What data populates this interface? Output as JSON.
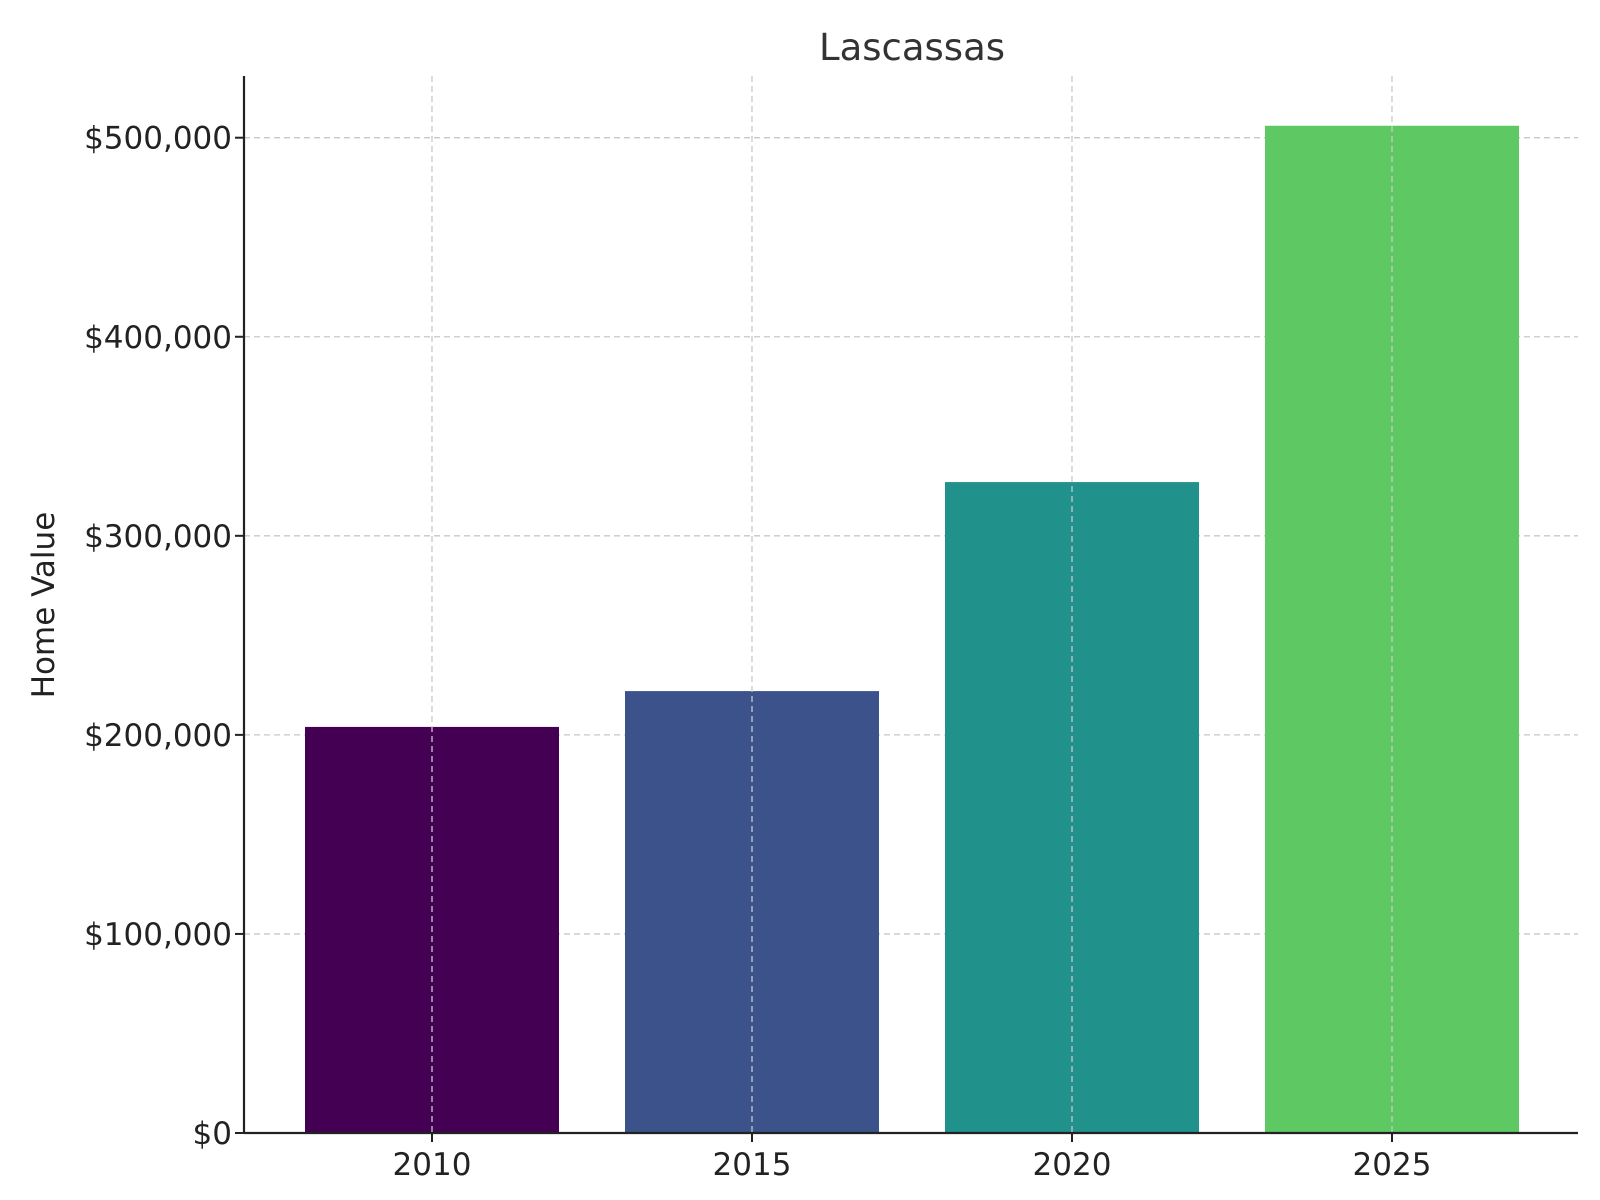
{
  "chart_data": {
    "type": "bar",
    "title": "Lascassas",
    "xlabel": "",
    "ylabel": "Home Value",
    "categories": [
      "2010",
      "2015",
      "2020",
      "2025"
    ],
    "values": [
      204000,
      222000,
      327000,
      506000
    ],
    "colors": [
      "#440154",
      "#3b528b",
      "#21918c",
      "#5ec962"
    ],
    "ylim": [
      0,
      531000
    ],
    "yticks": [
      0,
      100000,
      200000,
      300000,
      400000,
      500000
    ],
    "ytick_labels": [
      "$0",
      "$100,000",
      "$200,000",
      "$300,000",
      "$400,000",
      "$500,000"
    ],
    "grid": true,
    "legend": null
  }
}
